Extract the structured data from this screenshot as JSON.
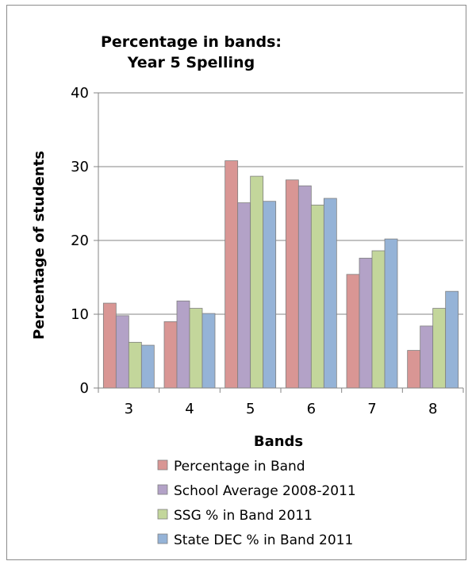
{
  "chart_data": {
    "type": "bar",
    "title_lines": [
      "Percentage in bands:",
      "Year 5 Spelling"
    ],
    "xlabel": "Bands",
    "ylabel": "Percentage of students",
    "categories": [
      "3",
      "4",
      "5",
      "6",
      "7",
      "8"
    ],
    "ylim": [
      0,
      40
    ],
    "yticks": [
      "0",
      "10",
      "20",
      "30",
      "40"
    ],
    "grid": true,
    "legend_position": "bottom",
    "series": [
      {
        "name": "Percentage in Band",
        "color": "#d99694",
        "values": [
          11.5,
          9.0,
          30.8,
          28.2,
          15.4,
          5.1
        ]
      },
      {
        "name": "School Average 2008-2011",
        "color": "#b3a2c7",
        "values": [
          9.8,
          11.8,
          25.1,
          27.4,
          17.6,
          8.4
        ]
      },
      {
        "name": "SSG % in Band 2011",
        "color": "#c3d69b",
        "values": [
          6.2,
          10.8,
          28.7,
          24.8,
          18.6,
          10.8
        ]
      },
      {
        "name": "State DEC % in Band 2011",
        "color": "#95b3d7",
        "values": [
          5.8,
          10.1,
          25.3,
          25.7,
          20.2,
          13.1
        ]
      }
    ]
  }
}
